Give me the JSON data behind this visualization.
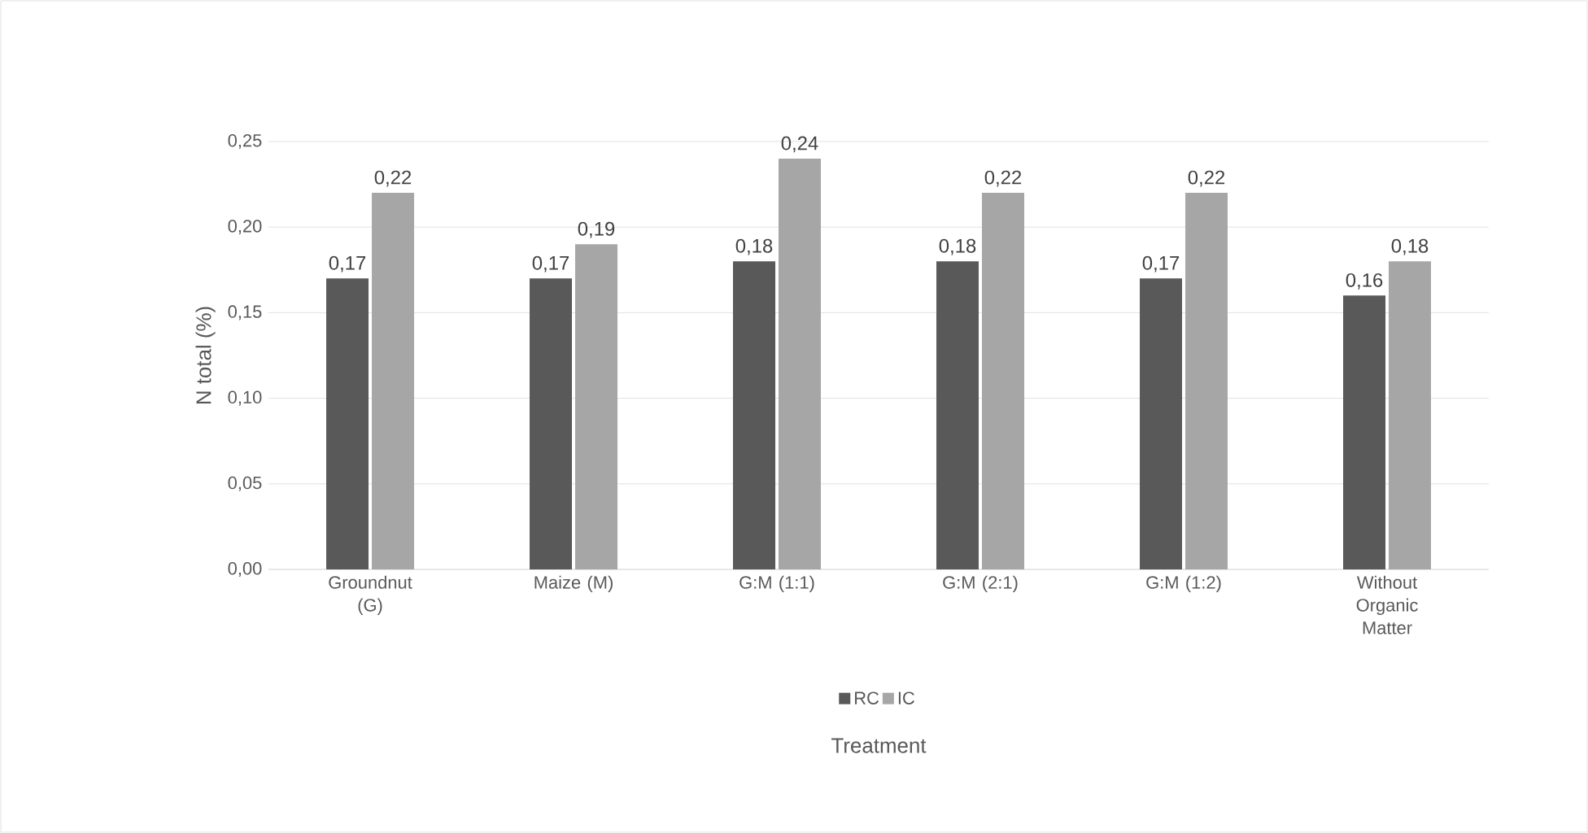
{
  "chart_data": {
    "type": "bar",
    "xlabel": "Treatment",
    "ylabel": "N total (%)",
    "categories": [
      "Groundnut (G)",
      "Maize (M)",
      "G:M (1:1)",
      "G:M (2:1)",
      "G:M (1:2)",
      "Without Organic Matter"
    ],
    "series": [
      {
        "name": "RC",
        "color": "#595959",
        "values": [
          0.17,
          0.17,
          0.18,
          0.18,
          0.17,
          0.16
        ],
        "value_labels": [
          "0,17",
          "0,17",
          "0,18",
          "0,18",
          "0,17",
          "0,16"
        ]
      },
      {
        "name": "IC",
        "color": "#a6a6a6",
        "values": [
          0.22,
          0.19,
          0.24,
          0.22,
          0.22,
          0.18
        ],
        "value_labels": [
          "0,22",
          "0,19",
          "0,24",
          "0,22",
          "0,22",
          "0,18"
        ]
      }
    ],
    "ylim": [
      0,
      0.25
    ],
    "yticks": [
      {
        "value": 0,
        "label": "0,00"
      },
      {
        "value": 0.05,
        "label": "0,05"
      },
      {
        "value": 0.1,
        "label": "0,10"
      },
      {
        "value": 0.15,
        "label": "0,15"
      },
      {
        "value": 0.2,
        "label": "0,20"
      },
      {
        "value": 0.25,
        "label": "0,25"
      }
    ],
    "grid": "y",
    "legend": "bottom"
  }
}
